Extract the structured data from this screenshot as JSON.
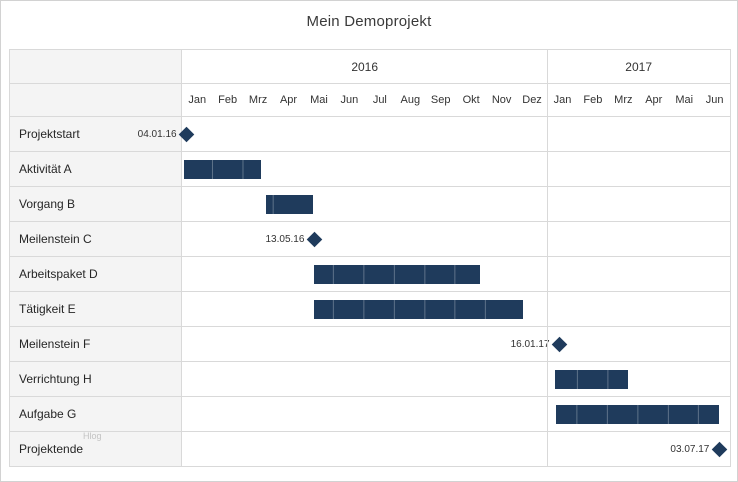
{
  "title": "Mein Demoprojekt",
  "watermark": "Hlog",
  "colors": {
    "bar": "#1f3b5c",
    "grid": "#d9d9d9",
    "label_bg": "#f4f4f4",
    "text": "#262626"
  },
  "chart_data": {
    "type": "gantt",
    "title": "Mein Demoprojekt",
    "timeline": {
      "years": [
        {
          "label": "2016",
          "span_months": 12
        },
        {
          "label": "2017",
          "span_months": 6
        }
      ],
      "months": [
        "Jan",
        "Feb",
        "Mrz",
        "Apr",
        "Mai",
        "Jun",
        "Jul",
        "Aug",
        "Sep",
        "Okt",
        "Nov",
        "Dez",
        "Jan",
        "Feb",
        "Mrz",
        "Apr",
        "Mai",
        "Jun"
      ]
    },
    "tasks": [
      {
        "name": "Projektstart",
        "type": "milestone",
        "date": "04.01.16",
        "month": 0.15
      },
      {
        "name": "Aktivität A",
        "type": "bar",
        "start": 0.05,
        "end": 2.6
      },
      {
        "name": "Vorgang B",
        "type": "bar",
        "start": 2.75,
        "end": 4.3
      },
      {
        "name": "Meilenstein C",
        "type": "milestone",
        "date": "13.05.16",
        "month": 4.35
      },
      {
        "name": "Arbeitspaket D",
        "type": "bar",
        "start": 4.35,
        "end": 9.8
      },
      {
        "name": "Tätigkeit E",
        "type": "bar",
        "start": 4.35,
        "end": 11.2
      },
      {
        "name": "Meilenstein F",
        "type": "milestone",
        "date": "16.01.17",
        "month": 12.4
      },
      {
        "name": "Verrichtung H",
        "type": "bar",
        "start": 12.25,
        "end": 14.65
      },
      {
        "name": "Aufgabe G",
        "type": "bar",
        "start": 12.3,
        "end": 17.65
      },
      {
        "name": "Projektende",
        "type": "milestone",
        "date": "03.07.17",
        "month": 17.65
      }
    ]
  }
}
